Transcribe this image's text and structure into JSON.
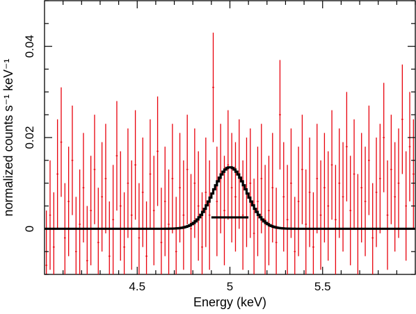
{
  "chart_data": {
    "type": "scatter",
    "title": "",
    "xlabel": "Energy (keV)",
    "ylabel": "normalized counts s⁻¹ keV⁻¹",
    "xlim": [
      4.0,
      6.0
    ],
    "ylim": [
      -0.01,
      0.05
    ],
    "x_ticks": [
      {
        "value": 4.5,
        "label": "4.5"
      },
      {
        "value": 5.0,
        "label": "5"
      },
      {
        "value": 5.5,
        "label": "5.5"
      }
    ],
    "y_ticks": [
      {
        "value": 0.0,
        "label": "0"
      },
      {
        "value": 0.02,
        "label": "0.02"
      },
      {
        "value": 0.04,
        "label": "0.04"
      }
    ],
    "grid": false,
    "legend": "none",
    "colors": {
      "data": "#e8000b",
      "model": "#000000",
      "axes": "#000000"
    },
    "series": [
      {
        "kind": "data-with-errors",
        "x": [
          4.01,
          4.03,
          4.05,
          4.07,
          4.09,
          4.11,
          4.13,
          4.15,
          4.17,
          4.19,
          4.21,
          4.23,
          4.25,
          4.27,
          4.29,
          4.31,
          4.33,
          4.35,
          4.37,
          4.39,
          4.41,
          4.43,
          4.45,
          4.47,
          4.49,
          4.51,
          4.53,
          4.55,
          4.57,
          4.59,
          4.61,
          4.63,
          4.65,
          4.67,
          4.69,
          4.71,
          4.73,
          4.75,
          4.77,
          4.79,
          4.81,
          4.83,
          4.85,
          4.87,
          4.89,
          4.91,
          4.93,
          4.95,
          4.97,
          4.99,
          5.01,
          5.03,
          5.05,
          5.07,
          5.09,
          5.11,
          5.13,
          5.15,
          5.17,
          5.19,
          5.21,
          5.23,
          5.25,
          5.27,
          5.29,
          5.31,
          5.33,
          5.35,
          5.37,
          5.39,
          5.41,
          5.43,
          5.45,
          5.47,
          5.49,
          5.51,
          5.53,
          5.55,
          5.57,
          5.59,
          5.61,
          5.63,
          5.65,
          5.67,
          5.69,
          5.71,
          5.73,
          5.75,
          5.77,
          5.79,
          5.81,
          5.83,
          5.85,
          5.87,
          5.89,
          5.91,
          5.93,
          5.95,
          5.97,
          5.99
        ],
        "y": [
          -0.008,
          0.003,
          -0.004,
          0.012,
          0.019,
          -0.002,
          0.006,
          0.015,
          -0.005,
          0.001,
          0.009,
          -0.007,
          0.004,
          0.013,
          -0.003,
          0.007,
          0.011,
          -0.006,
          0.002,
          0.016,
          0.005,
          -0.004,
          0.01,
          0.003,
          0.014,
          -0.002,
          0.008,
          -0.006,
          0.012,
          0.004,
          0.017,
          -0.003,
          0.006,
          0.001,
          0.011,
          -0.005,
          0.009,
          0.003,
          0.013,
          0.0,
          0.01,
          0.005,
          -0.004,
          0.008,
          0.003,
          0.031,
          0.006,
          0.011,
          0.004,
          0.014,
          0.009,
          0.007,
          0.012,
          0.003,
          0.008,
          0.01,
          -0.001,
          0.006,
          0.011,
          0.002,
          0.004,
          0.009,
          -0.003,
          0.025,
          0.007,
          0.002,
          0.01,
          -0.005,
          0.006,
          0.013,
          0.001,
          0.008,
          -0.004,
          0.011,
          0.003,
          0.009,
          0.005,
          0.014,
          0.002,
          0.01,
          0.007,
          0.018,
          0.004,
          0.012,
          0.0,
          0.009,
          0.006,
          0.015,
          -0.002,
          0.008,
          0.011,
          0.02,
          0.003,
          0.013,
          0.007,
          0.01,
          0.024,
          0.005,
          0.018,
          0.012
        ],
        "yerr": 0.012
      },
      {
        "kind": "model-step",
        "gaussian": {
          "center": 5.0,
          "sigma": 0.09,
          "amplitude": 0.0135,
          "baseline": 0.0
        }
      },
      {
        "kind": "single-point",
        "x": 5.0,
        "y": 0.0025,
        "xerr": 0.1
      }
    ]
  }
}
